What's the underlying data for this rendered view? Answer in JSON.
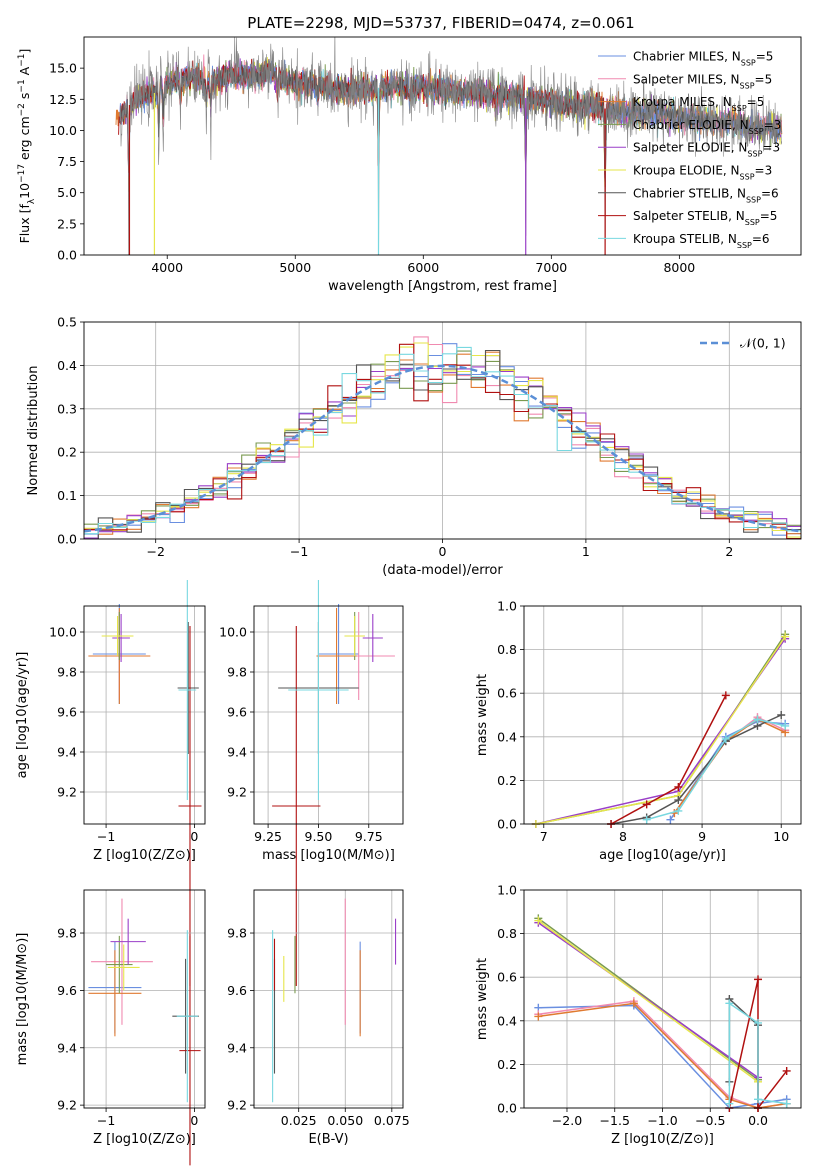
{
  "figure": {
    "title": "PLATE=2298, MJD=53737, FIBERID=0474, z=0.061"
  },
  "colors": {
    "model_colors": [
      "#6a8fe0",
      "#f08ab0",
      "#e07a30",
      "#7a9a50",
      "#9a3fc8",
      "#e6e64a",
      "#555555",
      "#b01010",
      "#78d8e0"
    ],
    "data_spectrum": "#808080",
    "gauss": "#5b8fd6"
  },
  "chart_data": [
    {
      "name": "spectrum",
      "type": "line",
      "xlabel": "wavelength [Angstrom, rest frame]",
      "ylabel": "Flux [f_λ 10^-17 erg cm^-2 s^-1 A^-1]",
      "xlim": [
        3350,
        8950
      ],
      "ylim": [
        0,
        17.5
      ],
      "x_ticks": [
        4000,
        5000,
        6000,
        7000,
        8000
      ],
      "y_ticks": [
        0.0,
        2.5,
        5.0,
        7.5,
        10.0,
        12.5,
        15.0
      ],
      "grid": false,
      "legend_loc": "upper right",
      "legend": [
        {
          "base": "Chabrier MILES, N",
          "sub": "SSP",
          "tail": "=5"
        },
        {
          "base": "Salpeter MILES, N",
          "sub": "SSP",
          "tail": "=5"
        },
        {
          "base": "Kroupa MILES, N",
          "sub": "SSP",
          "tail": "=5"
        },
        {
          "base": "Chabrier ELODIE, N",
          "sub": "SSP",
          "tail": "=3"
        },
        {
          "base": "Salpeter ELODIE, N",
          "sub": "SSP",
          "tail": "=3"
        },
        {
          "base": "Kroupa ELODIE, N",
          "sub": "SSP",
          "tail": "=3"
        },
        {
          "base": "Chabrier STELIB, N",
          "sub": "SSP",
          "tail": "=6"
        },
        {
          "base": "Salpeter STELIB, N",
          "sub": "SSP",
          "tail": "=5"
        },
        {
          "base": "Kroupa STELIB, N",
          "sub": "SSP",
          "tail": "=6"
        }
      ],
      "continuum": {
        "x": [
          3620,
          3700,
          3800,
          3900,
          4000,
          4100,
          4200,
          4300,
          4400,
          4500,
          4600,
          4700,
          4800,
          4900,
          5000,
          5200,
          5400,
          5600,
          5800,
          6000,
          6200,
          6400,
          6600,
          6800,
          7000,
          7200,
          7400,
          7600,
          7800,
          8000,
          8200,
          8400,
          8600,
          8900
        ],
        "y": [
          11.0,
          12.0,
          12.8,
          13.0,
          13.8,
          14.1,
          14.3,
          13.9,
          14.1,
          14.4,
          14.5,
          14.3,
          14.8,
          14.2,
          13.8,
          13.6,
          13.2,
          13.4,
          13.5,
          13.4,
          13.2,
          13.0,
          12.9,
          12.6,
          12.3,
          12.0,
          11.8,
          11.4,
          11.5,
          11.0,
          10.8,
          10.6,
          10.3,
          10.0
        ]
      },
      "absorption_lines": [
        {
          "x": 3700,
          "depth": 11.0
        },
        {
          "x": 3934,
          "depth": 6.0
        },
        {
          "x": 3969,
          "depth": 5.0
        },
        {
          "x": 4102,
          "depth": 3.0
        },
        {
          "x": 4305,
          "depth": 3.0
        },
        {
          "x": 4340,
          "depth": 4.0
        },
        {
          "x": 4861,
          "depth": 3.0
        },
        {
          "x": 5175,
          "depth": 2.5
        },
        {
          "x": 5650,
          "depth": 13.0
        },
        {
          "x": 5893,
          "depth": 2.0
        },
        {
          "x": 6563,
          "depth": 2.0
        },
        {
          "x": 6800,
          "depth": 12.0
        },
        {
          "x": 7420,
          "depth": 12.0
        }
      ]
    },
    {
      "name": "residual-distribution",
      "type": "step",
      "xlabel": "(data-model)/error",
      "ylabel": "Normed distribution",
      "xlim": [
        -2.5,
        2.5
      ],
      "ylim": [
        0,
        0.5
      ],
      "x_ticks": [
        -2,
        -1,
        0,
        1,
        2
      ],
      "y_ticks": [
        0.0,
        0.1,
        0.2,
        0.3,
        0.4,
        0.5
      ],
      "grid": true,
      "legend_loc": "upper right",
      "legend": [
        {
          "label": "𝒩(0, 1)"
        }
      ],
      "bin_width": 0.1,
      "bin_start": -2.5
    },
    {
      "name": "age-vs-z",
      "type": "errorbar",
      "xlabel": "Z [log10(Z/Z⊙)]",
      "ylabel": "age [log10(age/yr)]",
      "xlim": [
        -1.25,
        0.12
      ],
      "ylim": [
        9.04,
        10.13
      ],
      "x_ticks": [
        -1,
        0
      ],
      "y_ticks": [
        9.2,
        9.4,
        9.6,
        9.8,
        10.0
      ],
      "grid": true,
      "points": [
        {
          "x": -0.85,
          "y": 9.89,
          "xerr": 0.3,
          "yerr": 0.25
        },
        {
          "x": -0.85,
          "y": 9.88,
          "xerr": 0.35,
          "yerr": 0.22
        },
        {
          "x": -0.85,
          "y": 9.88,
          "xerr": 0.35,
          "yerr": 0.24
        },
        {
          "x": -0.85,
          "y": 9.98,
          "xerr": 0.15,
          "yerr": 0.12
        },
        {
          "x": -0.83,
          "y": 9.97,
          "xerr": 0.1,
          "yerr": 0.12
        },
        {
          "x": -0.87,
          "y": 9.98,
          "xerr": 0.18,
          "yerr": 0.1
        },
        {
          "x": -0.07,
          "y": 9.72,
          "xerr": 0.12,
          "yerr": 0.33
        },
        {
          "x": -0.05,
          "y": 9.13,
          "xerr": 0.13,
          "yerr": 0.9
        },
        {
          "x": -0.08,
          "y": 9.71,
          "xerr": 0.1,
          "yerr": 0.55
        }
      ]
    },
    {
      "name": "age-vs-mass",
      "type": "errorbar",
      "xlabel": "mass [log10(M/M⊙)]",
      "ylabel": "",
      "xlim": [
        9.18,
        9.92
      ],
      "ylim": [
        9.04,
        10.13
      ],
      "x_ticks": [
        9.25,
        9.5,
        9.75
      ],
      "y_ticks": [
        9.2,
        9.4,
        9.6,
        9.8,
        10.0
      ],
      "grid": true,
      "points": [
        {
          "x": 9.6,
          "y": 9.89,
          "xerr": 0.1,
          "yerr": 0.25
        },
        {
          "x": 9.7,
          "y": 9.88,
          "xerr": 0.18,
          "yerr": 0.22
        },
        {
          "x": 9.59,
          "y": 9.88,
          "xerr": 0.1,
          "yerr": 0.24
        },
        {
          "x": 9.68,
          "y": 9.98,
          "xerr": 0.05,
          "yerr": 0.12
        },
        {
          "x": 9.77,
          "y": 9.97,
          "xerr": 0.05,
          "yerr": 0.12
        },
        {
          "x": 9.68,
          "y": 9.98,
          "xerr": 0.05,
          "yerr": 0.1
        },
        {
          "x": 9.5,
          "y": 9.72,
          "xerr": 0.2,
          "yerr": 0.33
        },
        {
          "x": 9.39,
          "y": 9.13,
          "xerr": 0.12,
          "yerr": 0.9
        },
        {
          "x": 9.5,
          "y": 9.71,
          "xerr": 0.15,
          "yerr": 0.55
        }
      ]
    },
    {
      "name": "weight-vs-age",
      "type": "line",
      "xlabel": "age [log10(age/yr)]",
      "ylabel": "mass weight",
      "xlim": [
        6.75,
        10.25
      ],
      "ylim": [
        0,
        1.0
      ],
      "x_ticks": [
        7,
        8,
        9,
        10
      ],
      "y_ticks": [
        0.0,
        0.2,
        0.4,
        0.6,
        0.8,
        1.0
      ],
      "grid": true,
      "series": [
        {
          "x": [
            8.6,
            9.3,
            9.7,
            10.05
          ],
          "y": [
            0.02,
            0.4,
            0.47,
            0.46
          ]
        },
        {
          "x": [
            8.65,
            9.3,
            9.7,
            10.05
          ],
          "y": [
            0.05,
            0.38,
            0.49,
            0.43
          ]
        },
        {
          "x": [
            8.65,
            9.3,
            9.7,
            10.05
          ],
          "y": [
            0.05,
            0.38,
            0.48,
            0.42
          ]
        },
        {
          "x": [
            6.9,
            8.7,
            10.05
          ],
          "y": [
            0.0,
            0.13,
            0.87
          ]
        },
        {
          "x": [
            6.9,
            8.7,
            10.05
          ],
          "y": [
            0.0,
            0.15,
            0.85
          ]
        },
        {
          "x": [
            6.9,
            8.7,
            10.05
          ],
          "y": [
            0.0,
            0.13,
            0.86
          ]
        },
        {
          "x": [
            7.85,
            8.3,
            8.7,
            9.3,
            9.7,
            10.0
          ],
          "y": [
            0.0,
            0.03,
            0.11,
            0.38,
            0.45,
            0.5
          ]
        },
        {
          "x": [
            7.85,
            8.3,
            8.7,
            9.3
          ],
          "y": [
            0.0,
            0.09,
            0.17,
            0.59
          ]
        },
        {
          "x": [
            8.3,
            8.7,
            9.3,
            9.7,
            10.05
          ],
          "y": [
            0.02,
            0.06,
            0.39,
            0.48,
            0.45
          ]
        }
      ]
    },
    {
      "name": "mass-vs-z",
      "type": "errorbar",
      "xlabel": "Z [log10(Z/Z⊙)]",
      "ylabel": "mass [log10(M/M⊙)]",
      "xlim": [
        -1.25,
        0.12
      ],
      "ylim": [
        9.19,
        9.95
      ],
      "x_ticks": [
        -1,
        0
      ],
      "y_ticks": [
        9.2,
        9.4,
        9.6,
        9.8
      ],
      "grid": true,
      "points": [
        {
          "x": -0.9,
          "y": 9.61,
          "xerr": 0.3,
          "yerr": 0.16
        },
        {
          "x": -0.82,
          "y": 9.7,
          "xerr": 0.35,
          "yerr": 0.22
        },
        {
          "x": -0.9,
          "y": 9.59,
          "xerr": 0.3,
          "yerr": 0.15
        },
        {
          "x": -0.85,
          "y": 9.69,
          "xerr": 0.15,
          "yerr": 0.1
        },
        {
          "x": -0.75,
          "y": 9.77,
          "xerr": 0.2,
          "yerr": 0.08
        },
        {
          "x": -0.8,
          "y": 9.68,
          "xerr": 0.18,
          "yerr": 0.08
        },
        {
          "x": -0.1,
          "y": 9.51,
          "xerr": 0.15,
          "yerr": 0.2
        },
        {
          "x": -0.05,
          "y": 9.39,
          "xerr": 0.12,
          "yerr": 0.4
        },
        {
          "x": -0.08,
          "y": 9.51,
          "xerr": 0.12,
          "yerr": 0.3
        }
      ]
    },
    {
      "name": "mass-vs-ebv",
      "type": "errorbar",
      "xlabel": "E(B-V)",
      "ylabel": "",
      "xlim": [
        0.001,
        0.081
      ],
      "ylim": [
        9.19,
        9.95
      ],
      "x_ticks": [
        0.025,
        0.05,
        0.075
      ],
      "y_ticks": [
        9.2,
        9.4,
        9.6,
        9.8
      ],
      "grid": true,
      "points": [
        {
          "x": 0.058,
          "y": 9.61,
          "xerr": 0,
          "yerr": 0.16
        },
        {
          "x": 0.05,
          "y": 9.7,
          "xerr": 0,
          "yerr": 0.22
        },
        {
          "x": 0.058,
          "y": 9.59,
          "xerr": 0,
          "yerr": 0.15
        },
        {
          "x": 0.023,
          "y": 9.69,
          "xerr": 0,
          "yerr": 0.1
        },
        {
          "x": 0.077,
          "y": 9.77,
          "xerr": 0,
          "yerr": 0.08
        },
        {
          "x": 0.017,
          "y": 9.64,
          "xerr": 0,
          "yerr": 0.08
        },
        {
          "x": 0.012,
          "y": 9.51,
          "xerr": 0,
          "yerr": 0.2
        },
        {
          "x": 0.012,
          "y": 9.69,
          "xerr": 0,
          "yerr": 0.09
        },
        {
          "x": 0.011,
          "y": 9.51,
          "xerr": 0,
          "yerr": 0.3
        }
      ]
    },
    {
      "name": "weight-vs-z",
      "type": "line",
      "xlabel": "Z [log10(Z/Z⊙)]",
      "ylabel": "mass weight",
      "xlim": [
        -2.45,
        0.45
      ],
      "ylim": [
        0,
        1.0
      ],
      "x_ticks": [
        -2.0,
        -1.5,
        -1.0,
        -0.5,
        0.0
      ],
      "y_ticks": [
        0.0,
        0.2,
        0.4,
        0.6,
        0.8,
        1.0
      ],
      "grid": true,
      "series": [
        {
          "x": [
            -2.3,
            -1.3,
            -0.3,
            0.0,
            0.3
          ],
          "y": [
            0.46,
            0.47,
            0.0,
            0.02,
            0.04
          ]
        },
        {
          "x": [
            -2.3,
            -1.3,
            -0.3,
            0.0,
            0.3
          ],
          "y": [
            0.43,
            0.49,
            0.05,
            0.0,
            0.02
          ]
        },
        {
          "x": [
            -2.3,
            -1.3,
            -0.3,
            0.0,
            0.3
          ],
          "y": [
            0.42,
            0.48,
            0.04,
            0.0,
            0.02
          ]
        },
        {
          "x": [
            -2.3,
            0.0
          ],
          "y": [
            0.87,
            0.13
          ]
        },
        {
          "x": [
            -2.3,
            0.0
          ],
          "y": [
            0.85,
            0.14
          ]
        },
        {
          "x": [
            -2.3,
            0.0
          ],
          "y": [
            0.86,
            0.12
          ]
        },
        {
          "x": [
            -0.3,
            -0.3,
            0.0,
            0.0
          ],
          "y": [
            0.12,
            0.5,
            0.38,
            0.0
          ]
        },
        {
          "x": [
            -0.3,
            0.0,
            0.0,
            0.3
          ],
          "y": [
            0.0,
            0.59,
            0.0,
            0.17
          ]
        },
        {
          "x": [
            -0.3,
            -0.3,
            0.0,
            0.0,
            0.3
          ],
          "y": [
            0.02,
            0.48,
            0.39,
            0.04,
            0.02
          ]
        }
      ]
    }
  ]
}
